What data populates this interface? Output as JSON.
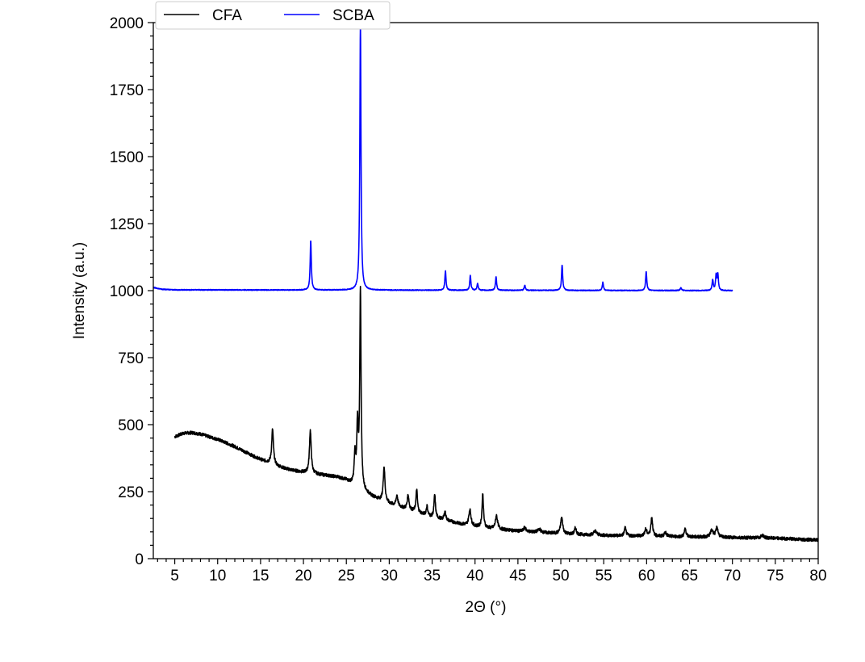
{
  "chart_data": {
    "type": "line",
    "title": "",
    "xlabel": "2Θ (°)",
    "ylabel": "Intensity (a.u.)",
    "xlim": [
      2.5,
      80
    ],
    "ylim": [
      0,
      2000
    ],
    "xticks": [
      5,
      10,
      15,
      20,
      25,
      30,
      35,
      40,
      45,
      50,
      55,
      60,
      65,
      70,
      75,
      80
    ],
    "yticks": [
      0,
      250,
      500,
      750,
      1000,
      1250,
      1500,
      1750,
      2000
    ],
    "grid": false,
    "legend": {
      "placement": "top-left",
      "columns": 2
    },
    "series": [
      {
        "name": "CFA",
        "color": "#000000",
        "baseline": [
          [
            5,
            455
          ],
          [
            6,
            468
          ],
          [
            7,
            470
          ],
          [
            8,
            465
          ],
          [
            9,
            455
          ],
          [
            10,
            445
          ],
          [
            11,
            432
          ],
          [
            12,
            418
          ],
          [
            13,
            402
          ],
          [
            14,
            385
          ],
          [
            15,
            370
          ],
          [
            16,
            358
          ],
          [
            17,
            345
          ],
          [
            18,
            335
          ],
          [
            19,
            328
          ],
          [
            20,
            322
          ],
          [
            21,
            318
          ],
          [
            22,
            313
          ],
          [
            23,
            309
          ],
          [
            24,
            304
          ],
          [
            25,
            292
          ],
          [
            26,
            270
          ],
          [
            27,
            250
          ],
          [
            28,
            232
          ],
          [
            29,
            218
          ],
          [
            30,
            205
          ],
          [
            31,
            195
          ],
          [
            32,
            185
          ],
          [
            33,
            175
          ],
          [
            34,
            165
          ],
          [
            35,
            155
          ],
          [
            36,
            148
          ],
          [
            37,
            140
          ],
          [
            38,
            132
          ],
          [
            39,
            125
          ],
          [
            40,
            120
          ],
          [
            41,
            116
          ],
          [
            42,
            112
          ],
          [
            43,
            109
          ],
          [
            44,
            106
          ],
          [
            45,
            103
          ],
          [
            46,
            101
          ],
          [
            47,
            99
          ],
          [
            48,
            97
          ],
          [
            49,
            95
          ],
          [
            50,
            93
          ],
          [
            52,
            90
          ],
          [
            54,
            88
          ],
          [
            56,
            86
          ],
          [
            58,
            85
          ],
          [
            60,
            84
          ],
          [
            62,
            83
          ],
          [
            64,
            82
          ],
          [
            66,
            81
          ],
          [
            68,
            80
          ],
          [
            70,
            79
          ],
          [
            72,
            78
          ],
          [
            74,
            77
          ],
          [
            76,
            75
          ],
          [
            78,
            72
          ],
          [
            80,
            70
          ]
        ],
        "peaks": [
          [
            16.4,
            130,
            0.12
          ],
          [
            20.8,
            160,
            0.12
          ],
          [
            26.0,
            110,
            0.1
          ],
          [
            26.3,
            230,
            0.1
          ],
          [
            26.64,
            740,
            0.09
          ],
          [
            29.4,
            130,
            0.12
          ],
          [
            30.9,
            40,
            0.12
          ],
          [
            32.2,
            55,
            0.12
          ],
          [
            33.2,
            85,
            0.1
          ],
          [
            34.4,
            35,
            0.1
          ],
          [
            35.3,
            85,
            0.1
          ],
          [
            36.5,
            30,
            0.12
          ],
          [
            39.4,
            60,
            0.15
          ],
          [
            40.9,
            125,
            0.1
          ],
          [
            42.5,
            50,
            0.15
          ],
          [
            45.8,
            15,
            0.15
          ],
          [
            47.5,
            12,
            0.2
          ],
          [
            50.1,
            60,
            0.15
          ],
          [
            51.7,
            25,
            0.12
          ],
          [
            54.0,
            15,
            0.2
          ],
          [
            57.5,
            30,
            0.12
          ],
          [
            59.9,
            25,
            0.15
          ],
          [
            60.6,
            70,
            0.12
          ],
          [
            62.2,
            15,
            0.15
          ],
          [
            64.5,
            30,
            0.12
          ],
          [
            67.6,
            25,
            0.2
          ],
          [
            68.2,
            35,
            0.15
          ],
          [
            73.5,
            10,
            0.2
          ]
        ]
      },
      {
        "name": "SCBA",
        "color": "#0000ff",
        "baseline": [
          [
            2.5,
            1012
          ],
          [
            3.5,
            1005
          ],
          [
            5,
            1003
          ],
          [
            70,
            1000
          ]
        ],
        "peaks": [
          [
            20.85,
            185,
            0.08
          ],
          [
            26.64,
            995,
            0.08
          ],
          [
            36.55,
            72,
            0.08
          ],
          [
            39.45,
            55,
            0.08
          ],
          [
            40.3,
            25,
            0.08
          ],
          [
            42.45,
            50,
            0.08
          ],
          [
            45.8,
            20,
            0.08
          ],
          [
            50.15,
            95,
            0.08
          ],
          [
            54.9,
            30,
            0.08
          ],
          [
            59.95,
            70,
            0.08
          ],
          [
            64.0,
            10,
            0.1
          ],
          [
            67.7,
            40,
            0.08
          ],
          [
            68.1,
            55,
            0.08
          ],
          [
            68.3,
            60,
            0.08
          ]
        ]
      }
    ]
  }
}
